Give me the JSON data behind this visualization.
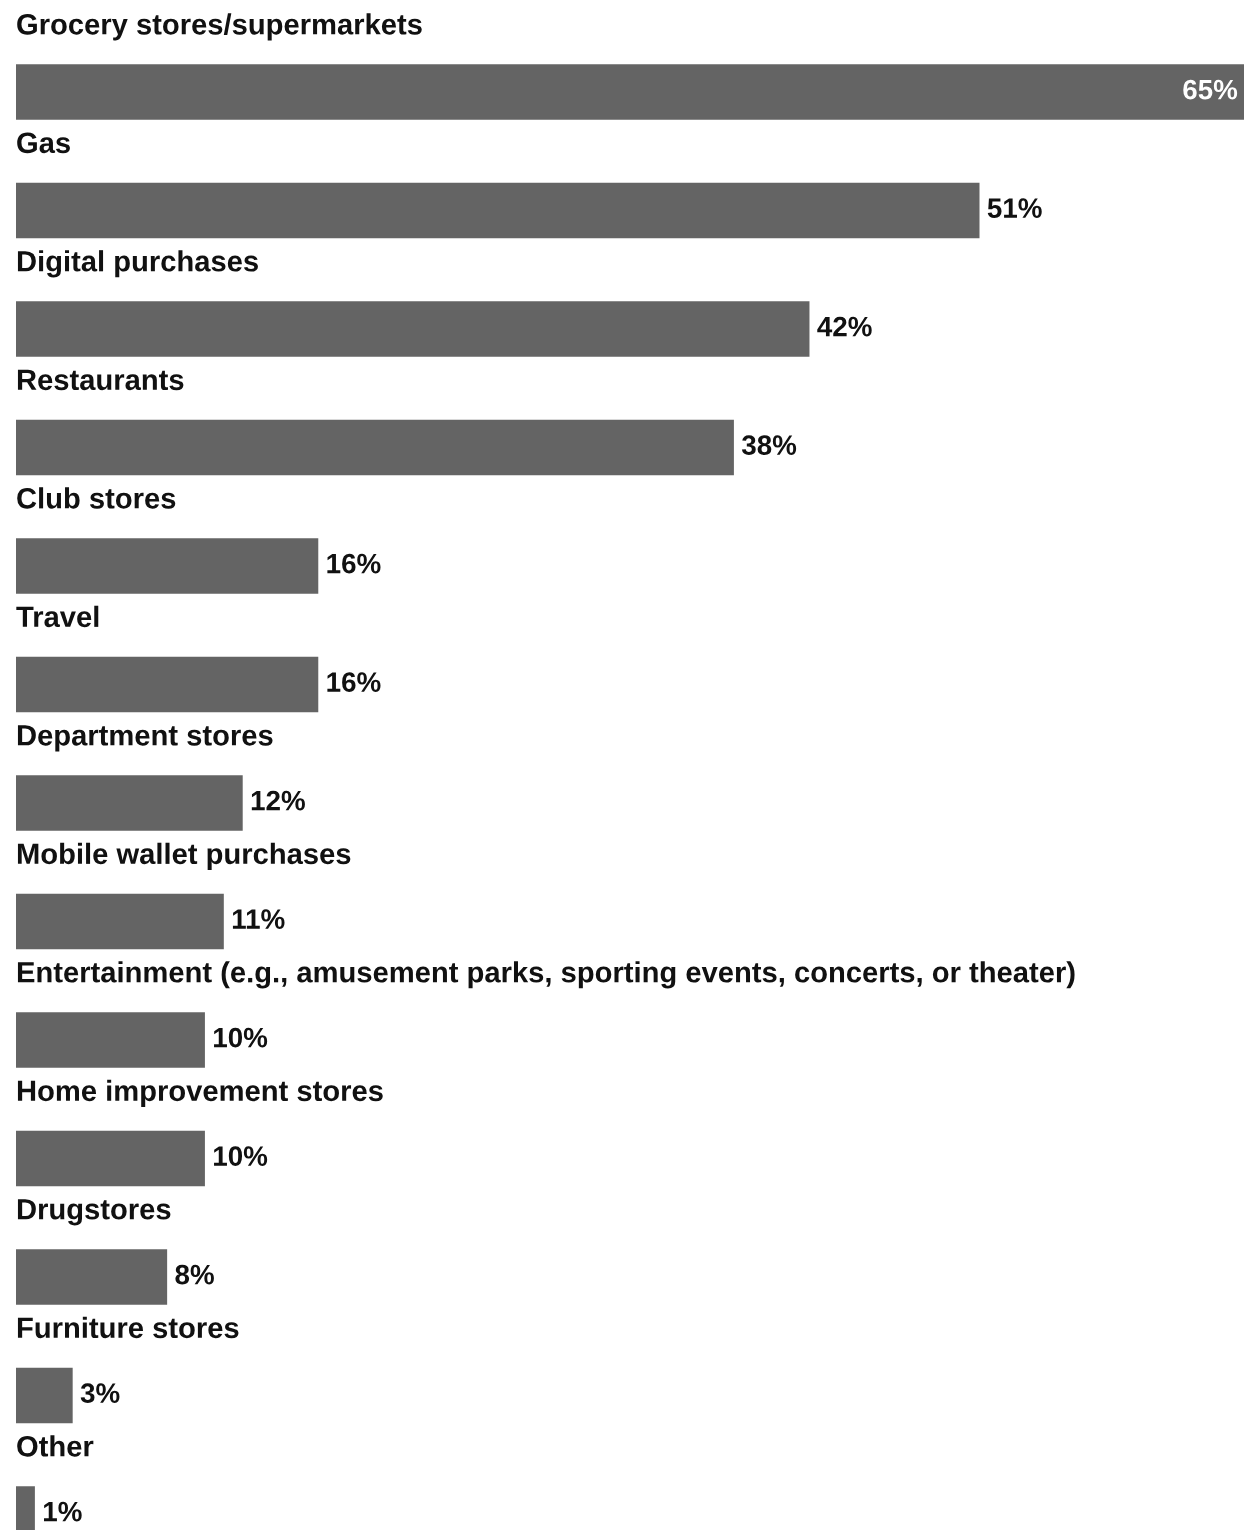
{
  "chart_data": {
    "type": "bar",
    "orientation": "horizontal",
    "categories": [
      "Grocery stores/supermarkets",
      "Gas",
      "Digital purchases",
      "Restaurants",
      "Club stores",
      "Travel",
      "Department stores",
      "Mobile wallet purchases",
      "Entertainment (e.g., amusement parks, sporting events, concerts, or theater)",
      "Home improvement stores",
      "Drugstores",
      "Furniture stores",
      "Other"
    ],
    "values": [
      65,
      51,
      42,
      38,
      16,
      16,
      12,
      11,
      10,
      10,
      8,
      3,
      1
    ],
    "value_labels": [
      "65%",
      "51%",
      "42%",
      "38%",
      "16%",
      "16%",
      "12%",
      "11%",
      "10%",
      "10%",
      "8%",
      "3%",
      "1%"
    ],
    "color": "#646464"
  }
}
